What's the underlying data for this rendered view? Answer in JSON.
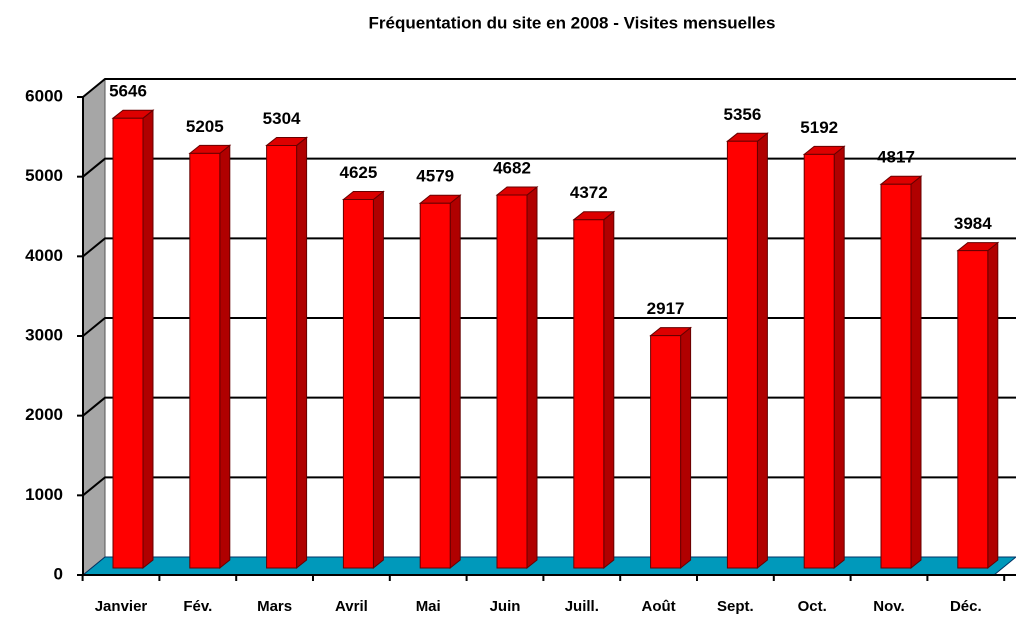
{
  "chart_data": {
    "type": "bar",
    "title": "Fréquentation du site en 2008 - Visites mensuelles",
    "categories": [
      "Janvier",
      "Fév.",
      "Mars",
      "Avril",
      "Mai",
      "Juin",
      "Juill.",
      "Août",
      "Sept.",
      "Oct.",
      "Nov.",
      "Déc."
    ],
    "values": [
      5646,
      5205,
      5304,
      4625,
      4579,
      4682,
      4372,
      2917,
      5356,
      5192,
      4817,
      3984
    ],
    "color": "#ff0000",
    "ylim": [
      0,
      6000
    ],
    "yticks": [
      0,
      1000,
      2000,
      3000,
      4000,
      5000,
      6000
    ],
    "grid": true
  }
}
